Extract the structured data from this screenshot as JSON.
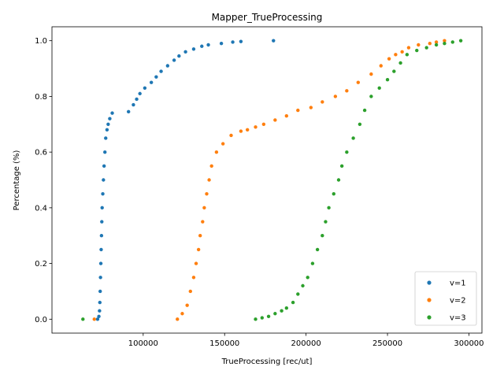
{
  "chart_data": {
    "type": "scatter",
    "title": "Mapper_TrueProcessing",
    "xlabel": "TrueProcessing [rec/ut]",
    "ylabel": "Percentage (%)",
    "xlim": [
      44000,
      308000
    ],
    "ylim": [
      -0.05,
      1.05
    ],
    "x_ticks": [
      100000,
      150000,
      200000,
      250000,
      300000
    ],
    "y_ticks": [
      0.0,
      0.2,
      0.4,
      0.6,
      0.8,
      1.0
    ],
    "legend_position": "lower right",
    "series": [
      {
        "name": "v=1",
        "color": "#1f77b4",
        "points": [
          [
            72000,
            0.0
          ],
          [
            72800,
            0.01
          ],
          [
            73200,
            0.03
          ],
          [
            73400,
            0.06
          ],
          [
            73600,
            0.1
          ],
          [
            73800,
            0.15
          ],
          [
            74000,
            0.2
          ],
          [
            74200,
            0.25
          ],
          [
            74400,
            0.3
          ],
          [
            74600,
            0.35
          ],
          [
            74800,
            0.4
          ],
          [
            75200,
            0.45
          ],
          [
            75600,
            0.5
          ],
          [
            76000,
            0.55
          ],
          [
            76500,
            0.6
          ],
          [
            77000,
            0.65
          ],
          [
            77800,
            0.68
          ],
          [
            78500,
            0.7
          ],
          [
            79500,
            0.72
          ],
          [
            81000,
            0.74
          ],
          [
            91000,
            0.745
          ],
          [
            94000,
            0.77
          ],
          [
            96000,
            0.79
          ],
          [
            98000,
            0.81
          ],
          [
            101000,
            0.83
          ],
          [
            105000,
            0.85
          ],
          [
            108000,
            0.87
          ],
          [
            111000,
            0.89
          ],
          [
            115000,
            0.91
          ],
          [
            119000,
            0.93
          ],
          [
            122000,
            0.945
          ],
          [
            126000,
            0.96
          ],
          [
            131000,
            0.97
          ],
          [
            136000,
            0.98
          ],
          [
            140000,
            0.985
          ],
          [
            148000,
            0.99
          ],
          [
            155000,
            0.995
          ],
          [
            160000,
            0.997
          ],
          [
            180000,
            1.0
          ]
        ]
      },
      {
        "name": "v=2",
        "color": "#ff7f0e",
        "points": [
          [
            70000,
            0.0
          ],
          [
            121000,
            0.0
          ],
          [
            124000,
            0.02
          ],
          [
            127000,
            0.05
          ],
          [
            129000,
            0.1
          ],
          [
            131000,
            0.15
          ],
          [
            132500,
            0.2
          ],
          [
            134000,
            0.25
          ],
          [
            135000,
            0.3
          ],
          [
            136500,
            0.35
          ],
          [
            137500,
            0.4
          ],
          [
            139000,
            0.45
          ],
          [
            140500,
            0.5
          ],
          [
            142000,
            0.55
          ],
          [
            145000,
            0.6
          ],
          [
            149000,
            0.63
          ],
          [
            154000,
            0.66
          ],
          [
            160000,
            0.675
          ],
          [
            164000,
            0.68
          ],
          [
            169000,
            0.69
          ],
          [
            174000,
            0.7
          ],
          [
            181000,
            0.715
          ],
          [
            188000,
            0.73
          ],
          [
            195000,
            0.75
          ],
          [
            203000,
            0.76
          ],
          [
            210000,
            0.78
          ],
          [
            218000,
            0.8
          ],
          [
            225000,
            0.82
          ],
          [
            232000,
            0.85
          ],
          [
            240000,
            0.88
          ],
          [
            246000,
            0.91
          ],
          [
            251000,
            0.935
          ],
          [
            255000,
            0.95
          ],
          [
            259000,
            0.96
          ],
          [
            263000,
            0.975
          ],
          [
            269000,
            0.985
          ],
          [
            276000,
            0.99
          ],
          [
            280000,
            0.995
          ],
          [
            285000,
            1.0
          ]
        ]
      },
      {
        "name": "v=3",
        "color": "#2ca02c",
        "points": [
          [
            63000,
            0.0
          ],
          [
            169000,
            0.0
          ],
          [
            173000,
            0.005
          ],
          [
            177000,
            0.01
          ],
          [
            181000,
            0.02
          ],
          [
            185000,
            0.03
          ],
          [
            188000,
            0.04
          ],
          [
            192000,
            0.06
          ],
          [
            195000,
            0.09
          ],
          [
            198000,
            0.12
          ],
          [
            201000,
            0.15
          ],
          [
            204000,
            0.2
          ],
          [
            207000,
            0.25
          ],
          [
            210000,
            0.3
          ],
          [
            212000,
            0.35
          ],
          [
            214000,
            0.4
          ],
          [
            217000,
            0.45
          ],
          [
            220000,
            0.5
          ],
          [
            222000,
            0.55
          ],
          [
            225000,
            0.6
          ],
          [
            229000,
            0.65
          ],
          [
            233000,
            0.7
          ],
          [
            236000,
            0.75
          ],
          [
            240000,
            0.8
          ],
          [
            245000,
            0.83
          ],
          [
            250000,
            0.86
          ],
          [
            254000,
            0.89
          ],
          [
            258000,
            0.92
          ],
          [
            262000,
            0.95
          ],
          [
            268000,
            0.965
          ],
          [
            274000,
            0.975
          ],
          [
            280000,
            0.985
          ],
          [
            285000,
            0.99
          ],
          [
            290000,
            0.995
          ],
          [
            295000,
            1.0
          ]
        ]
      }
    ]
  }
}
